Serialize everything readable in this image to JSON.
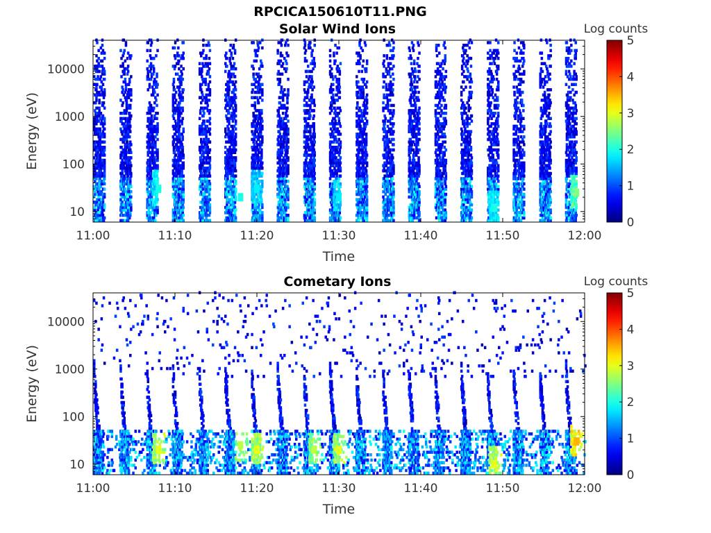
{
  "figure": {
    "filename_title": "RPCICA150610T11.PNG"
  },
  "chart_data": [
    {
      "type": "heatmap",
      "title": "Solar Wind Ions",
      "xlabel": "Time",
      "ylabel": "Energy (eV)",
      "x_ticks": [
        "11:00",
        "11:10",
        "11:20",
        "11:30",
        "11:40",
        "11:50",
        "12:00"
      ],
      "xlim": [
        "11:00",
        "12:00"
      ],
      "y_scale": "log",
      "ylim": [
        6,
        40000
      ],
      "y_ticks": [
        {
          "value": 10,
          "label": "10"
        },
        {
          "value": 100,
          "label": "100"
        },
        {
          "value": 1000,
          "label": "1000"
        },
        {
          "value": 10000,
          "label": "10000"
        }
      ],
      "colorbar": {
        "label": "Log counts",
        "min": 0,
        "max": 5,
        "ticks": [
          "0",
          "1",
          "2",
          "3",
          "4",
          "5"
        ],
        "colormap": "jet"
      },
      "grid": false,
      "sweep_period_min": 3.2,
      "description_of_values": "Periodic energy sweeps (~3.2 min) with counts mostly log 0-1 above 100 eV and peaks of log 2-3 near 10-40 eV",
      "peaks": [
        {
          "time": "11:08",
          "energy_eV": 30,
          "log_counts": 2.0
        },
        {
          "time": "11:18",
          "energy_eV": 20,
          "log_counts": 2.0
        },
        {
          "time": "11:20",
          "energy_eV": 30,
          "log_counts": 1.8
        },
        {
          "time": "11:30",
          "energy_eV": 20,
          "log_counts": 1.8
        },
        {
          "time": "11:49",
          "energy_eV": 12,
          "log_counts": 2.0
        },
        {
          "time": "11:59",
          "energy_eV": 25,
          "log_counts": 2.5
        }
      ]
    },
    {
      "type": "heatmap",
      "title": "Cometary Ions",
      "xlabel": "Time",
      "ylabel": "Energy (eV)",
      "x_ticks": [
        "11:00",
        "11:10",
        "11:20",
        "11:30",
        "11:40",
        "11:50",
        "12:00"
      ],
      "xlim": [
        "11:00",
        "12:00"
      ],
      "y_scale": "log",
      "ylim": [
        6,
        40000
      ],
      "y_ticks": [
        {
          "value": 10,
          "label": "10"
        },
        {
          "value": 100,
          "label": "100"
        },
        {
          "value": 1000,
          "label": "1000"
        },
        {
          "value": 10000,
          "label": "10000"
        }
      ],
      "colorbar": {
        "label": "Log counts",
        "min": 0,
        "max": 5,
        "ticks": [
          "0",
          "1",
          "2",
          "3",
          "4",
          "5"
        ],
        "colormap": "jet"
      },
      "grid": false,
      "sweep_period_min": 3.2,
      "description_of_values": "Dispersed streaks from ~500 eV down to ~10 eV each sweep; strongest counts (log 2-3.5) at 10-40 eV",
      "peaks": [
        {
          "time": "11:08",
          "energy_eV": 20,
          "log_counts": 3.0
        },
        {
          "time": "11:18",
          "energy_eV": 25,
          "log_counts": 2.8
        },
        {
          "time": "11:20",
          "energy_eV": 20,
          "log_counts": 3.0
        },
        {
          "time": "11:27",
          "energy_eV": 20,
          "log_counts": 2.8
        },
        {
          "time": "11:30",
          "energy_eV": 20,
          "log_counts": 3.0
        },
        {
          "time": "11:49",
          "energy_eV": 10,
          "log_counts": 3.0
        },
        {
          "time": "11:59",
          "energy_eV": 30,
          "log_counts": 3.5
        }
      ]
    }
  ]
}
